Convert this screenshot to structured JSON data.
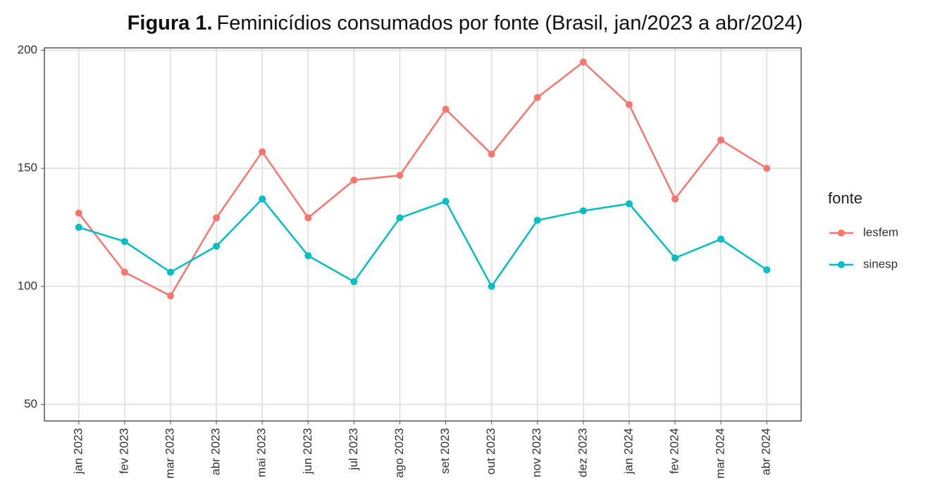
{
  "chart_data": {
    "type": "line",
    "figure_label": "Figura 1.",
    "title": "Feminicídios consumados por fonte (Brasil, jan/2023 a abr/2024)",
    "categories": [
      "jan 2023",
      "fev 2023",
      "mar 2023",
      "abr 2023",
      "mai 2023",
      "jun 2023",
      "jul 2023",
      "ago 2023",
      "set 2023",
      "out 2023",
      "nov 2023",
      "dez 2023",
      "jan 2024",
      "fev 2024",
      "mar 2024",
      "abr 2024"
    ],
    "series": [
      {
        "name": "lesfem",
        "color": "#f8766d",
        "values": [
          131,
          106,
          96,
          129,
          157,
          129,
          145,
          147,
          175,
          156,
          180,
          195,
          177,
          137,
          162,
          150
        ]
      },
      {
        "name": "sinesp",
        "color": "#00bfc4",
        "values": [
          125,
          119,
          106,
          117,
          137,
          113,
          102,
          129,
          136,
          100,
          128,
          132,
          135,
          112,
          120,
          107
        ]
      }
    ],
    "ylim": [
      43,
      201
    ],
    "yticks": [
      50,
      100,
      150,
      200
    ],
    "grid": true,
    "legend_title": "fonte",
    "legend": "right"
  }
}
